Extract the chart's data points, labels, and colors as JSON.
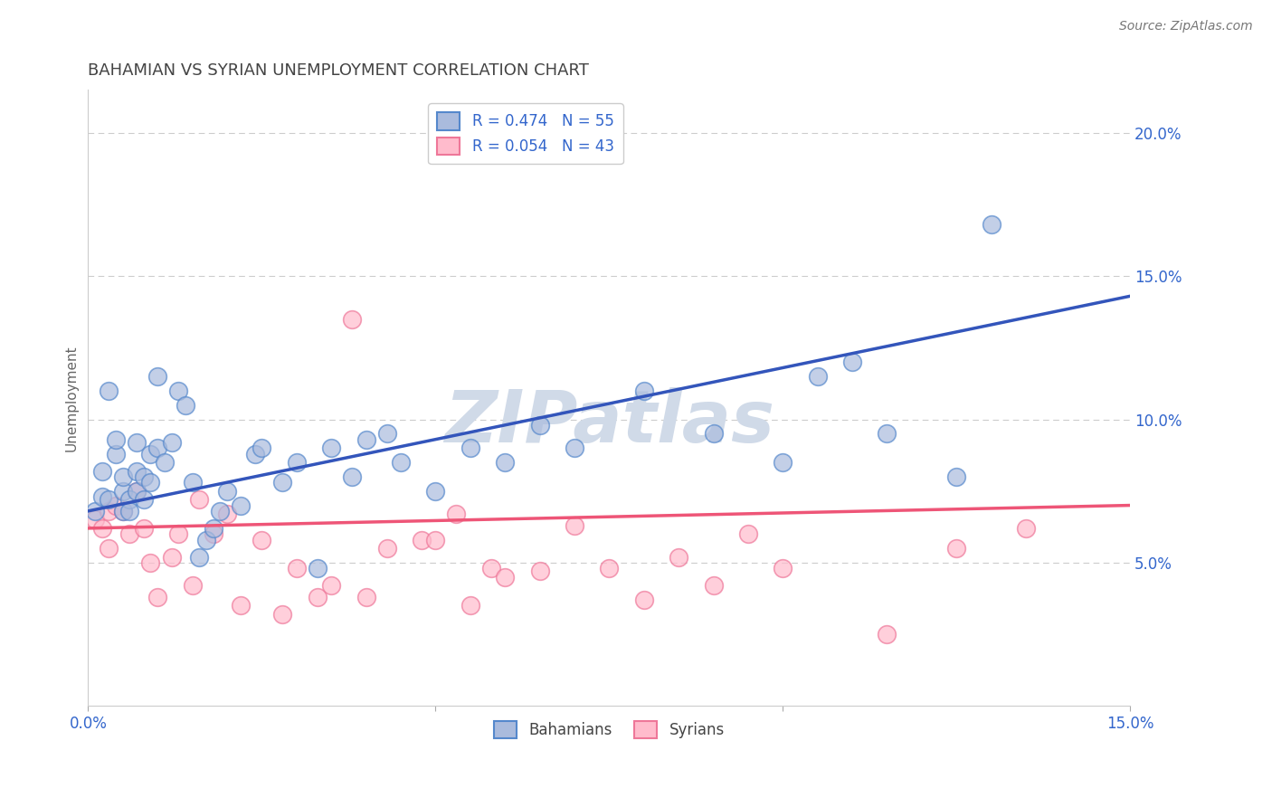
{
  "title": "BAHAMIAN VS SYRIAN UNEMPLOYMENT CORRELATION CHART",
  "source": "Source: ZipAtlas.com",
  "ylabel": "Unemployment",
  "xlim": [
    0.0,
    0.15
  ],
  "ylim": [
    0.0,
    0.215
  ],
  "xtick_positions": [
    0.0,
    0.05,
    0.1,
    0.15
  ],
  "xtick_labels": [
    "0.0%",
    "",
    "",
    "15.0%"
  ],
  "ytick_positions": [
    0.05,
    0.1,
    0.15,
    0.2
  ],
  "ytick_labels": [
    "5.0%",
    "10.0%",
    "15.0%",
    "20.0%"
  ],
  "grid_color": "#cccccc",
  "background_color": "#ffffff",
  "blue_fill_color": "#aabbdd",
  "pink_fill_color": "#ffbbcc",
  "blue_edge_color": "#5588cc",
  "pink_edge_color": "#ee7799",
  "blue_line_color": "#3355bb",
  "pink_line_color": "#ee5577",
  "watermark_color": "#d0dae8",
  "legend_text_color": "#3366cc",
  "legend_R_blue": "R = 0.474",
  "legend_N_blue": "N = 55",
  "legend_R_pink": "R = 0.054",
  "legend_N_pink": "N = 43",
  "legend_label_blue": "Bahamians",
  "legend_label_pink": "Syrians",
  "blue_x": [
    0.001,
    0.002,
    0.002,
    0.003,
    0.003,
    0.004,
    0.004,
    0.005,
    0.005,
    0.005,
    0.006,
    0.006,
    0.007,
    0.007,
    0.007,
    0.008,
    0.008,
    0.009,
    0.009,
    0.01,
    0.01,
    0.011,
    0.012,
    0.013,
    0.014,
    0.015,
    0.016,
    0.017,
    0.018,
    0.019,
    0.02,
    0.022,
    0.024,
    0.025,
    0.028,
    0.03,
    0.033,
    0.035,
    0.038,
    0.04,
    0.043,
    0.045,
    0.05,
    0.055,
    0.06,
    0.065,
    0.07,
    0.08,
    0.09,
    0.1,
    0.105,
    0.11,
    0.115,
    0.125,
    0.13
  ],
  "blue_y": [
    0.068,
    0.073,
    0.082,
    0.072,
    0.11,
    0.088,
    0.093,
    0.068,
    0.075,
    0.08,
    0.072,
    0.068,
    0.075,
    0.082,
    0.092,
    0.072,
    0.08,
    0.088,
    0.078,
    0.09,
    0.115,
    0.085,
    0.092,
    0.11,
    0.105,
    0.078,
    0.052,
    0.058,
    0.062,
    0.068,
    0.075,
    0.07,
    0.088,
    0.09,
    0.078,
    0.085,
    0.048,
    0.09,
    0.08,
    0.093,
    0.095,
    0.085,
    0.075,
    0.09,
    0.085,
    0.098,
    0.09,
    0.11,
    0.095,
    0.085,
    0.115,
    0.12,
    0.095,
    0.08,
    0.168
  ],
  "pink_x": [
    0.001,
    0.002,
    0.003,
    0.003,
    0.004,
    0.005,
    0.006,
    0.007,
    0.008,
    0.009,
    0.01,
    0.012,
    0.013,
    0.015,
    0.016,
    0.018,
    0.02,
    0.022,
    0.025,
    0.028,
    0.03,
    0.033,
    0.035,
    0.038,
    0.04,
    0.043,
    0.048,
    0.05,
    0.053,
    0.055,
    0.058,
    0.06,
    0.065,
    0.07,
    0.075,
    0.08,
    0.085,
    0.09,
    0.095,
    0.1,
    0.115,
    0.125,
    0.135
  ],
  "pink_y": [
    0.065,
    0.062,
    0.068,
    0.055,
    0.07,
    0.068,
    0.06,
    0.075,
    0.062,
    0.05,
    0.038,
    0.052,
    0.06,
    0.042,
    0.072,
    0.06,
    0.067,
    0.035,
    0.058,
    0.032,
    0.048,
    0.038,
    0.042,
    0.135,
    0.038,
    0.055,
    0.058,
    0.058,
    0.067,
    0.035,
    0.048,
    0.045,
    0.047,
    0.063,
    0.048,
    0.037,
    0.052,
    0.042,
    0.06,
    0.048,
    0.025,
    0.055,
    0.062
  ],
  "blue_trendline_x": [
    0.0,
    0.15
  ],
  "blue_trendline_y": [
    0.068,
    0.143
  ],
  "pink_trendline_x": [
    0.0,
    0.15
  ],
  "pink_trendline_y": [
    0.062,
    0.07
  ]
}
